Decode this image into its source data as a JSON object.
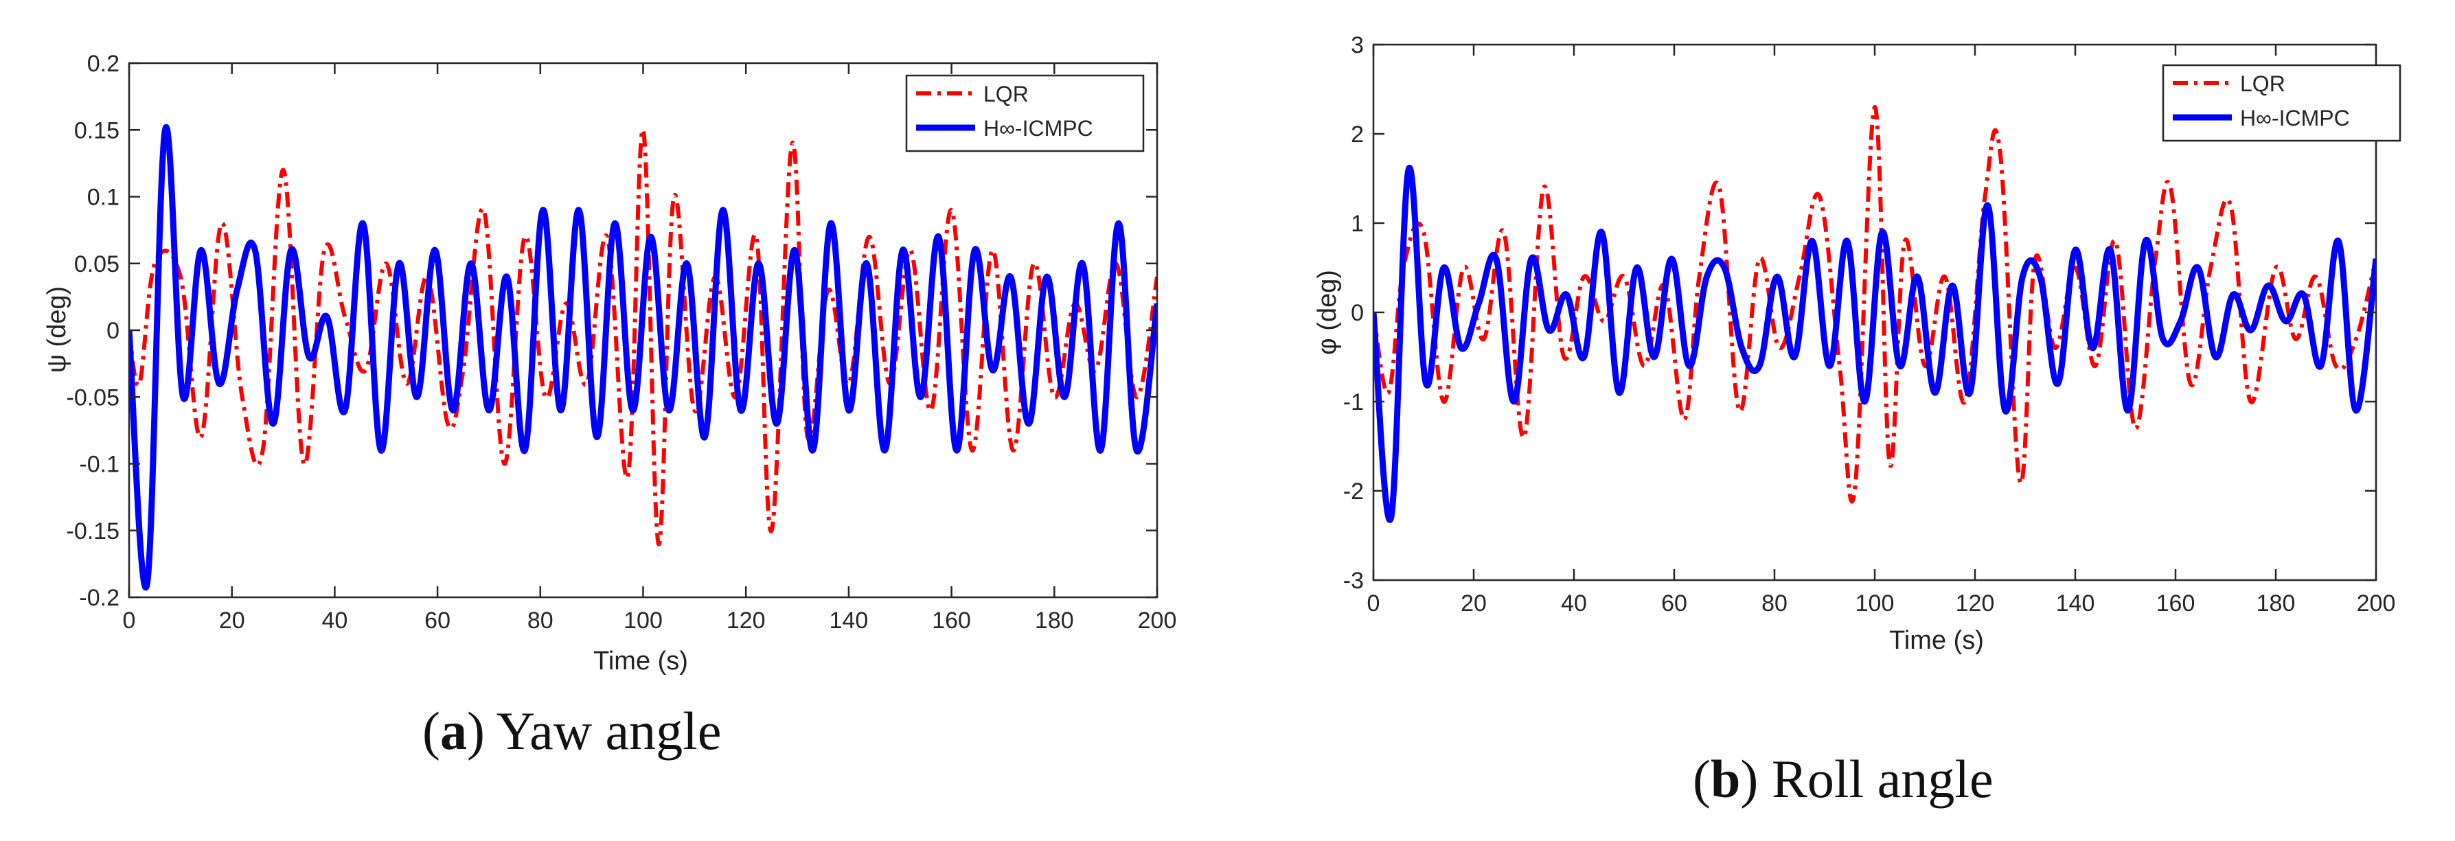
{
  "chart_data": [
    {
      "type": "line",
      "panel_letter": "a",
      "caption": "Yaw angle",
      "xlabel": "Time (s)",
      "ylabel": "ψ (deg)",
      "xlim": [
        0,
        200
      ],
      "ylim": [
        -0.2,
        0.2
      ],
      "xticks": [
        0,
        20,
        40,
        60,
        80,
        100,
        120,
        140,
        160,
        180,
        200
      ],
      "yticks": [
        -0.2,
        -0.15,
        -0.1,
        -0.05,
        0,
        0.05,
        0.1,
        0.15,
        0.2
      ],
      "ytick_labels": [
        "-0.2",
        "-0.15",
        "-0.1",
        "-0.05",
        "0",
        "0.05",
        "0.1",
        "0.15",
        "0.2"
      ],
      "legend_position": "top-right",
      "series": [
        {
          "name": "LQR",
          "color": "#ff0000",
          "style": "dashdot",
          "x": [
            0,
            2,
            5,
            10,
            14,
            18,
            22,
            26,
            30,
            34,
            38,
            42,
            46,
            50,
            54,
            58,
            62,
            65,
            69,
            73,
            77,
            81,
            85,
            89,
            93,
            97,
            100,
            103,
            106,
            110,
            114,
            118,
            122,
            125,
            129,
            132,
            136,
            140,
            144,
            148,
            152,
            156,
            160,
            164,
            168,
            172,
            176,
            180,
            184,
            188,
            192,
            196,
            200
          ],
          "y": [
            0,
            -0.04,
            0.05,
            0.04,
            -0.08,
            0.08,
            -0.05,
            -0.09,
            0.12,
            -0.1,
            0.06,
            0.01,
            -0.03,
            0.05,
            -0.04,
            0.04,
            -0.07,
            -0.03,
            0.09,
            -0.1,
            0.07,
            -0.05,
            0.02,
            -0.04,
            0.07,
            -0.11,
            0.15,
            -0.16,
            0.1,
            -0.06,
            0.04,
            -0.05,
            0.07,
            -0.15,
            0.14,
            -0.08,
            0.03,
            -0.04,
            0.07,
            -0.04,
            0.06,
            -0.06,
            0.09,
            -0.09,
            0.06,
            -0.09,
            0.05,
            -0.05,
            0.02,
            -0.03,
            0.05,
            -0.05,
            0.04
          ]
        },
        {
          "name": "H∞-ICMPC",
          "color": "#0000ff",
          "style": "solid",
          "x": [
            0,
            3.5,
            7,
            10.5,
            14,
            17.5,
            21,
            24.5,
            28,
            31.5,
            35,
            38.5,
            42,
            45.5,
            49,
            52.5,
            56,
            59.5,
            63,
            66.5,
            70,
            73.5,
            77,
            80.5,
            84,
            87.5,
            91,
            94.5,
            98,
            101.5,
            105,
            108.5,
            112,
            115.5,
            119,
            122.5,
            126,
            129.5,
            133,
            136.5,
            140,
            143.5,
            147,
            150.5,
            154,
            157.5,
            161,
            164.5,
            168,
            171.5,
            175,
            178.5,
            182,
            185.5,
            189,
            192.5,
            196,
            200
          ],
          "y": [
            0,
            -0.19,
            0.15,
            -0.05,
            0.06,
            -0.04,
            0.03,
            0.06,
            -0.07,
            0.06,
            -0.02,
            0.01,
            -0.06,
            0.08,
            -0.09,
            0.05,
            -0.05,
            0.06,
            -0.06,
            0.05,
            -0.06,
            0.04,
            -0.09,
            0.09,
            -0.06,
            0.09,
            -0.08,
            0.08,
            -0.06,
            0.07,
            -0.06,
            0.05,
            -0.08,
            0.09,
            -0.06,
            0.05,
            -0.07,
            0.06,
            -0.09,
            0.08,
            -0.06,
            0.05,
            -0.09,
            0.06,
            -0.05,
            0.07,
            -0.09,
            0.06,
            -0.03,
            0.04,
            -0.07,
            0.04,
            -0.05,
            0.05,
            -0.09,
            0.08,
            -0.09,
            0.02
          ]
        }
      ]
    },
    {
      "type": "line",
      "panel_letter": "b",
      "caption": "Roll angle",
      "xlabel": "Time (s)",
      "ylabel": "φ (deg)",
      "xlim": [
        0,
        200
      ],
      "ylim": [
        -3,
        3
      ],
      "xticks": [
        0,
        20,
        40,
        60,
        80,
        100,
        120,
        140,
        160,
        180,
        200
      ],
      "yticks": [
        -3,
        -2,
        -1,
        0,
        1,
        2,
        3
      ],
      "ytick_labels": [
        "-3",
        "-2",
        "-1",
        "0",
        "1",
        "2",
        "3"
      ],
      "legend_position": "top-right",
      "series": [
        {
          "name": "LQR",
          "color": "#ff0000",
          "style": "dashdot",
          "x": [
            0,
            3,
            6,
            10,
            14,
            18,
            22,
            26,
            30,
            34,
            38,
            42,
            46,
            50,
            54,
            58,
            62,
            65,
            69,
            73,
            77,
            81,
            85,
            89,
            93,
            96,
            100,
            103,
            106,
            110,
            114,
            118,
            122,
            125,
            129,
            132,
            136,
            140,
            144,
            148,
            152,
            156,
            159,
            163,
            167,
            171,
            175,
            180,
            184,
            188,
            192,
            196,
            200
          ],
          "y": [
            0,
            -0.9,
            0.5,
            0.9,
            -1.0,
            0.5,
            -0.3,
            0.9,
            -1.4,
            1.4,
            -0.5,
            0.4,
            -0.1,
            0.4,
            -0.6,
            0.3,
            -1.2,
            0.4,
            1.4,
            -1.1,
            0.6,
            -0.4,
            0.4,
            1.3,
            -0.6,
            -2.0,
            2.3,
            -1.7,
            0.8,
            -0.6,
            0.4,
            -1.0,
            1.3,
            1.8,
            -1.9,
            0.6,
            -0.4,
            0.5,
            -0.6,
            0.8,
            -1.3,
            0.6,
            1.4,
            -0.8,
            0.5,
            1.2,
            -1.0,
            0.5,
            -0.3,
            0.4,
            -0.6,
            -0.3,
            0.6
          ]
        },
        {
          "name": "H∞-ICMPC",
          "color": "#0000ff",
          "style": "solid",
          "x": [
            0,
            3.5,
            7,
            10.5,
            14,
            17.5,
            21,
            24.5,
            28,
            31.5,
            35,
            38.5,
            42,
            45.5,
            49,
            52.5,
            56,
            59.5,
            63,
            66.5,
            70,
            73.5,
            77,
            80.5,
            84,
            87.5,
            91,
            94.5,
            98,
            101.5,
            105,
            108.5,
            112,
            115.5,
            119,
            122.5,
            126,
            129.5,
            133,
            136.5,
            140,
            143.5,
            147,
            150.5,
            154,
            157.5,
            161,
            164.5,
            168,
            171.5,
            175,
            178.5,
            182,
            185.5,
            189,
            192.5,
            196,
            200
          ],
          "y": [
            0,
            -2.3,
            1.6,
            -0.8,
            0.5,
            -0.4,
            0.1,
            0.6,
            -1.0,
            0.6,
            -0.2,
            0.2,
            -0.5,
            0.9,
            -0.9,
            0.5,
            -0.5,
            0.6,
            -0.6,
            0.4,
            0.5,
            -0.4,
            -0.6,
            0.4,
            -0.5,
            0.8,
            -0.6,
            0.8,
            -1.0,
            0.9,
            -0.6,
            0.4,
            -0.9,
            0.3,
            -0.9,
            1.2,
            -1.1,
            0.4,
            0.4,
            -0.8,
            0.7,
            -0.4,
            0.7,
            -1.1,
            0.8,
            -0.3,
            -0.1,
            0.5,
            -0.5,
            0.2,
            -0.2,
            0.3,
            -0.1,
            0.2,
            -0.6,
            0.8,
            -1.1,
            0.6
          ]
        }
      ]
    }
  ]
}
